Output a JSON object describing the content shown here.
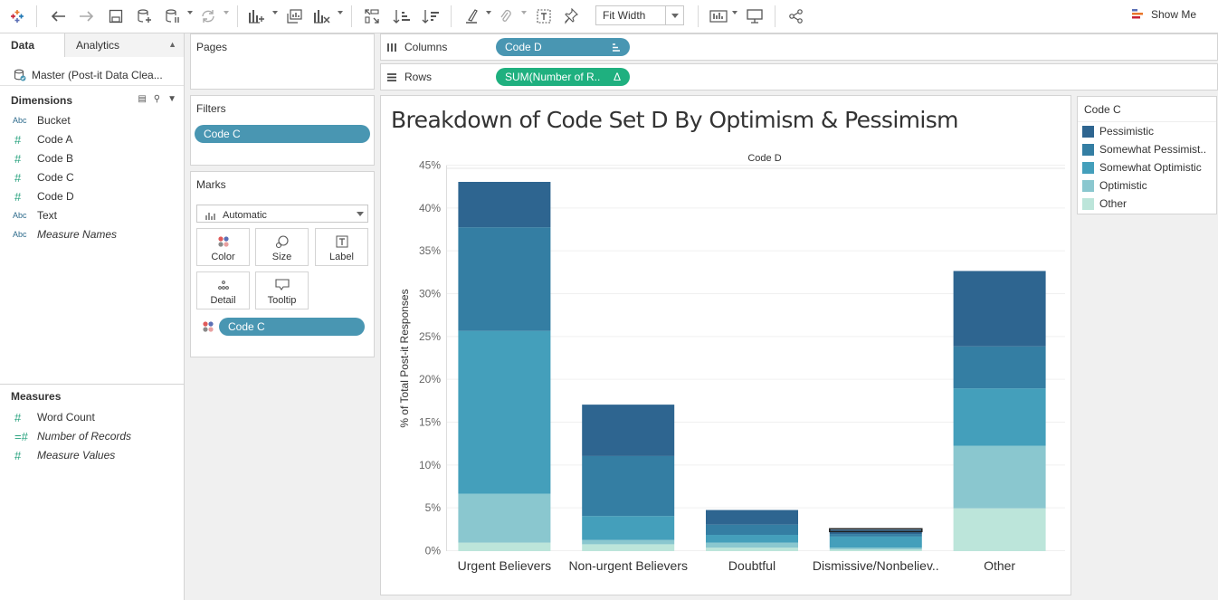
{
  "toolbar": {
    "fit_label": "Fit Width",
    "show_me": "Show Me"
  },
  "data_pane": {
    "tabs": [
      "Data",
      "Analytics"
    ],
    "datasource": "Master (Post-it Data Clea...",
    "dimensions_header": "Dimensions",
    "dimensions": [
      {
        "type": "Abc",
        "name": "Bucket",
        "italic": false
      },
      {
        "type": "#",
        "name": "Code A",
        "italic": false
      },
      {
        "type": "#",
        "name": "Code B",
        "italic": false
      },
      {
        "type": "#",
        "name": "Code C",
        "italic": false
      },
      {
        "type": "#",
        "name": "Code D",
        "italic": false
      },
      {
        "type": "Abc",
        "name": "Text",
        "italic": false
      },
      {
        "type": "Abc",
        "name": "Measure Names",
        "italic": true
      }
    ],
    "measures_header": "Measures",
    "measures": [
      {
        "type": "#",
        "name": "Word Count",
        "italic": false
      },
      {
        "type": "=#",
        "name": "Number of Records",
        "italic": true
      },
      {
        "type": "#",
        "name": "Measure Values",
        "italic": true
      }
    ]
  },
  "pages": {
    "title": "Pages"
  },
  "filters": {
    "title": "Filters",
    "pill": "Code C"
  },
  "marks": {
    "title": "Marks",
    "mark_type": "Automatic",
    "buttons": [
      "Color",
      "Size",
      "Label",
      "Detail",
      "Tooltip"
    ],
    "color_pill": "Code C"
  },
  "shelves": {
    "columns_label": "Columns",
    "columns_pill": "Code D",
    "rows_label": "Rows",
    "rows_pill": "SUM(Number of R..",
    "rows_delta": "Δ"
  },
  "legend": {
    "title": "Code C",
    "items": [
      {
        "label": "Pessimistic",
        "color": "#2e6590"
      },
      {
        "label": "Somewhat Pessimist..",
        "color": "#347ea3"
      },
      {
        "label": "Somewhat Optimistic",
        "color": "#449fbb"
      },
      {
        "label": "Optimistic",
        "color": "#8ac7cf"
      },
      {
        "label": "Other",
        "color": "#bce5da"
      }
    ]
  },
  "chart_data": {
    "type": "bar",
    "stacked": true,
    "title": "Breakdown of Code Set D By Optimism & Pessimism",
    "subtitle": "Code D",
    "ylabel": "% of Total Post-it Responses",
    "ylim": [
      0,
      45
    ],
    "yticks": [
      "0%",
      "5%",
      "10%",
      "15%",
      "20%",
      "25%",
      "30%",
      "35%",
      "40%",
      "45%"
    ],
    "categories": [
      "Urgent Believers",
      "Non-urgent Believers",
      "Doubtful",
      "Dismissive/Nonbeliev..",
      "Other"
    ],
    "series": [
      {
        "name": "Other",
        "values": [
          1.0,
          0.8,
          0.4,
          0.2,
          5.0
        ]
      },
      {
        "name": "Optimistic",
        "values": [
          5.7,
          0.5,
          0.6,
          0.2,
          7.3
        ]
      },
      {
        "name": "Somewhat Optimistic",
        "values": [
          19.0,
          2.8,
          0.9,
          1.3,
          6.7
        ]
      },
      {
        "name": "Somewhat Pessimistic",
        "values": [
          12.1,
          7.0,
          1.2,
          0.3,
          4.9
        ]
      },
      {
        "name": "Pessimistic",
        "values": [
          5.3,
          6.0,
          1.7,
          0.5,
          8.8
        ]
      }
    ]
  }
}
